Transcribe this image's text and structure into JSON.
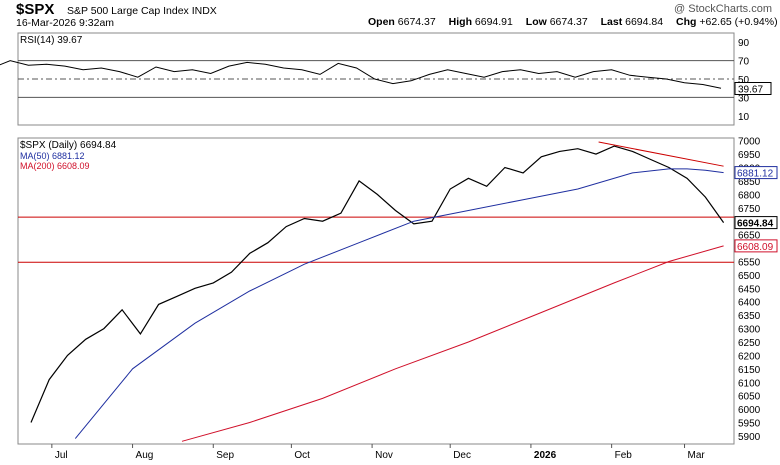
{
  "header": {
    "symbol": "$SPX",
    "name": "S&P 500 Large Cap Index  INDX",
    "date": "16-Mar-2026 9:32am",
    "open_label": "Open",
    "open": "6674.37",
    "high_label": "High",
    "high": "6694.91",
    "low_label": "Low",
    "low": "6674.37",
    "last_label": "Last",
    "last": "6694.84",
    "chg_label": "Chg",
    "chg": "+62.65 (+0.94%)",
    "watermark": "@ StockCharts.com"
  },
  "colors": {
    "price": "#000000",
    "ma50": "#1f2fa0",
    "ma200": "#d0102a",
    "hline": "#cc0000",
    "rsi": "#000000",
    "rsi_fill": "#2e7d32"
  },
  "chart_data": [
    {
      "type": "line",
      "title": "RSI(14) 39.67",
      "series": [
        {
          "name": "RSI(14)",
          "last_value": 39.67
        }
      ],
      "yticks": [
        "90",
        "70",
        "50",
        "30",
        "10"
      ],
      "ylim": [
        0,
        100
      ],
      "ref_levels": [
        70,
        50,
        30
      ],
      "last_label": "39.67",
      "x": [
        "Jun 8",
        "Jun 15",
        "Jun 22",
        "Jun 29",
        "Jul 6",
        "Jul 13",
        "Jul 20",
        "Jul 27",
        "Aug 3",
        "Aug 10",
        "Aug 17",
        "Aug 24",
        "Aug 31",
        "Sep 7",
        "Sep 14",
        "Sep 21",
        "Sep 28",
        "Oct 5",
        "Oct 12",
        "Oct 19",
        "Oct 26",
        "Nov 2",
        "Nov 9",
        "Nov 16",
        "Nov 23",
        "Nov 30",
        "Dec 7",
        "Dec 14",
        "Dec 21",
        "Dec 28",
        "Jan 4",
        "Jan 11",
        "Jan 18",
        "Jan 25",
        "Feb 1",
        "Feb 8",
        "Feb 15",
        "Feb 22",
        "Mar 1",
        "Mar 8",
        "Mar 15"
      ],
      "values": [
        62,
        70,
        65,
        66,
        64,
        60,
        62,
        58,
        52,
        63,
        58,
        60,
        56,
        64,
        68,
        66,
        62,
        60,
        55,
        67,
        62,
        50,
        45,
        48,
        55,
        60,
        56,
        52,
        58,
        60,
        56,
        58,
        52,
        58,
        60,
        54,
        52,
        50,
        46,
        44,
        40
      ]
    },
    {
      "type": "line",
      "title": "$SPX (Daily) 6694.84",
      "legend": [
        "$SPX (Daily) 6694.84",
        "MA(50) 6881.12",
        "MA(200) 6608.09"
      ],
      "xlabels": [
        "Jul",
        "Aug",
        "Sep",
        "Oct",
        "Nov",
        "Dec",
        "2026",
        "Feb",
        "Mar"
      ],
      "yticks": [
        "7000",
        "6950",
        "6900",
        "6850",
        "6800",
        "6750",
        "6700",
        "6650",
        "6600",
        "6550",
        "6500",
        "6450",
        "6400",
        "6350",
        "6300",
        "6250",
        "6200",
        "6150",
        "6100",
        "6050",
        "6000",
        "5950",
        "5900"
      ],
      "ylim": [
        5870,
        7010
      ],
      "horizontal_lines": [
        6715,
        6547
      ],
      "trendline": {
        "from": [
          "Jan 27",
          6995
        ],
        "to": [
          "Mar 16",
          6905
        ]
      },
      "last_labels": {
        "ma50": "6881.12",
        "price": "6694.84",
        "ma200": "6608.09"
      },
      "series": [
        {
          "name": "$SPX (Daily)",
          "x": [
            "Jun 23",
            "Jun 30",
            "Jul 7",
            "Jul 14",
            "Jul 21",
            "Jul 28",
            "Aug 4",
            "Aug 11",
            "Aug 18",
            "Aug 25",
            "Sep 1",
            "Sep 8",
            "Sep 15",
            "Sep 22",
            "Sep 29",
            "Oct 6",
            "Oct 13",
            "Oct 20",
            "Oct 27",
            "Nov 3",
            "Nov 10",
            "Nov 17",
            "Nov 24",
            "Dec 1",
            "Dec 8",
            "Dec 15",
            "Dec 22",
            "Dec 29",
            "Jan 5",
            "Jan 12",
            "Jan 19",
            "Jan 26",
            "Feb 2",
            "Feb 9",
            "Feb 16",
            "Feb 23",
            "Mar 2",
            "Mar 9",
            "Mar 16"
          ],
          "values": [
            5950,
            6110,
            6200,
            6260,
            6300,
            6370,
            6280,
            6390,
            6420,
            6450,
            6470,
            6510,
            6580,
            6620,
            6680,
            6710,
            6700,
            6730,
            6850,
            6800,
            6740,
            6690,
            6700,
            6820,
            6860,
            6830,
            6900,
            6880,
            6940,
            6960,
            6970,
            6950,
            6980,
            6960,
            6930,
            6900,
            6860,
            6790,
            6694.84
          ]
        },
        {
          "name": "MA(50)",
          "x": [
            "Jul 10",
            "Aug 1",
            "Aug 25",
            "Sep 15",
            "Oct 6",
            "Oct 27",
            "Nov 17",
            "Dec 8",
            "Dec 29",
            "Jan 19",
            "Feb 9",
            "Feb 23",
            "Mar 2",
            "Mar 9",
            "Mar 16"
          ],
          "values": [
            5890,
            6150,
            6320,
            6440,
            6540,
            6620,
            6700,
            6740,
            6780,
            6820,
            6880,
            6895,
            6895,
            6890,
            6881.12
          ]
        },
        {
          "name": "MA(200)",
          "x": [
            "Aug 20",
            "Sep 15",
            "Oct 13",
            "Nov 10",
            "Dec 8",
            "Jan 5",
            "Feb 2",
            "Feb 23",
            "Mar 16"
          ],
          "values": [
            5880,
            5950,
            6040,
            6150,
            6250,
            6360,
            6470,
            6550,
            6608.09
          ]
        }
      ]
    }
  ]
}
